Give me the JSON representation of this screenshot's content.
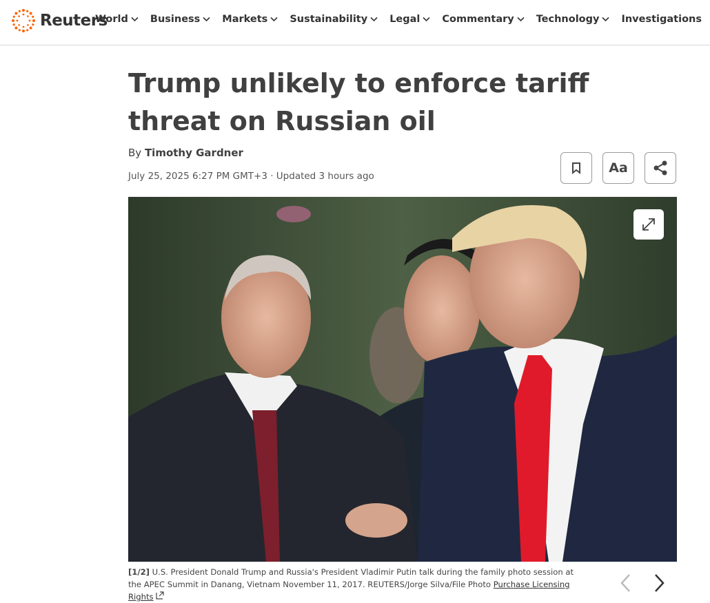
{
  "header": {
    "logo": "Reuters",
    "nav": [
      "World",
      "Business",
      "Markets",
      "Sustainability",
      "Legal",
      "Commentary",
      "Technology",
      "Investigations"
    ]
  },
  "article": {
    "title": "Trump unlikely to enforce tariff threat on Russian oil",
    "byline_prefix": "By",
    "author": "Timothy Gardner",
    "dateline": "July 25, 2025 6:27 PM GMT+3 · Updated 3 hours ago",
    "text_size_button": "Aa",
    "image": {
      "counter": "[1/2]",
      "caption": "U.S. President Donald Trump and Russia's President Vladimir Putin talk during the family photo session at the APEC Summit in Danang, Vietnam November 11, 2017. REUTERS/Jorge Silva/File Photo",
      "license_link": "Purchase Licensing Rights"
    }
  }
}
